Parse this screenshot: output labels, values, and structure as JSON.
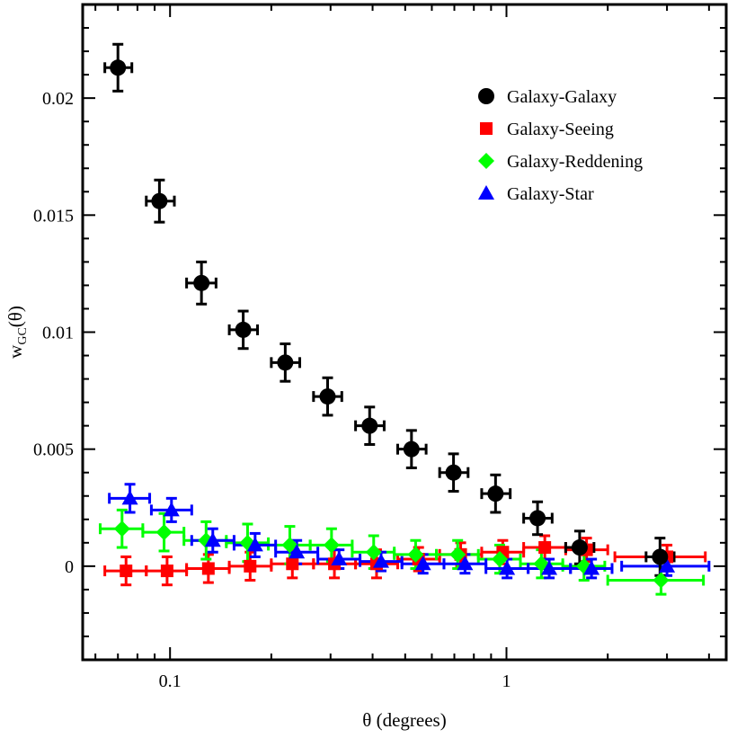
{
  "chart_data": {
    "type": "scatter",
    "xscale": "log",
    "xlim": [
      0.055,
      4.5
    ],
    "ylim": [
      -0.004,
      0.024
    ],
    "xlabel": "θ (degrees)",
    "ylabel": {
      "base": "w",
      "sub": "GC",
      "arg": "(θ)"
    },
    "x_tick_labels": [
      {
        "value": 0.1,
        "label": "0.1"
      },
      {
        "value": 1,
        "label": "1"
      }
    ],
    "y_tick_labels": [
      {
        "value": 0,
        "label": "0"
      },
      {
        "value": 0.005,
        "label": "0.005"
      },
      {
        "value": 0.01,
        "label": "0.01"
      },
      {
        "value": 0.015,
        "label": "0.015"
      },
      {
        "value": 0.02,
        "label": "0.02"
      }
    ],
    "legend_position": "top-right",
    "series": [
      {
        "name": "Galaxy-Galaxy",
        "color": "#000000",
        "marker": "circle",
        "points": [
          {
            "x": 0.07,
            "y": 0.0213,
            "yerr": 0.001,
            "xlo": 0.064,
            "xhi": 0.077
          },
          {
            "x": 0.093,
            "y": 0.0156,
            "yerr": 0.0009,
            "xlo": 0.085,
            "xhi": 0.103
          },
          {
            "x": 0.124,
            "y": 0.0121,
            "yerr": 0.0009,
            "xlo": 0.112,
            "xhi": 0.137
          },
          {
            "x": 0.165,
            "y": 0.0101,
            "yerr": 0.0008,
            "xlo": 0.15,
            "xhi": 0.182
          },
          {
            "x": 0.22,
            "y": 0.0087,
            "yerr": 0.0008,
            "xlo": 0.2,
            "xhi": 0.243
          },
          {
            "x": 0.294,
            "y": 0.00725,
            "yerr": 0.0008,
            "xlo": 0.267,
            "xhi": 0.324
          },
          {
            "x": 0.392,
            "y": 0.006,
            "yerr": 0.0008,
            "xlo": 0.356,
            "xhi": 0.433
          },
          {
            "x": 0.522,
            "y": 0.005,
            "yerr": 0.0008,
            "xlo": 0.475,
            "xhi": 0.577
          },
          {
            "x": 0.696,
            "y": 0.004,
            "yerr": 0.0008,
            "xlo": 0.633,
            "xhi": 0.769
          },
          {
            "x": 0.928,
            "y": 0.0031,
            "yerr": 0.0008,
            "xlo": 0.844,
            "xhi": 1.026
          },
          {
            "x": 1.237,
            "y": 0.00205,
            "yerr": 0.0007,
            "xlo": 1.125,
            "xhi": 1.367
          },
          {
            "x": 1.65,
            "y": 0.0008,
            "yerr": 0.0007,
            "xlo": 1.5,
            "xhi": 1.82
          },
          {
            "x": 2.86,
            "y": 0.0004,
            "yerr": 0.0008,
            "xlo": 2.6,
            "xhi": 3.15
          }
        ]
      },
      {
        "name": "Galaxy-Seeing",
        "color": "#ff0000",
        "marker": "square",
        "points": [
          {
            "x": 0.074,
            "y": -0.0002,
            "yerr": 0.0006,
            "xlo": 0.064,
            "xhi": 0.085
          },
          {
            "x": 0.098,
            "y": -0.0002,
            "yerr": 0.0006,
            "xlo": 0.085,
            "xhi": 0.112
          },
          {
            "x": 0.13,
            "y": -0.0001,
            "yerr": 0.0006,
            "xlo": 0.112,
            "xhi": 0.15
          },
          {
            "x": 0.173,
            "y": 0.0,
            "yerr": 0.0006,
            "xlo": 0.15,
            "xhi": 0.2
          },
          {
            "x": 0.231,
            "y": 0.0001,
            "yerr": 0.0006,
            "xlo": 0.2,
            "xhi": 0.267
          },
          {
            "x": 0.308,
            "y": 0.0001,
            "yerr": 0.0006,
            "xlo": 0.267,
            "xhi": 0.356
          },
          {
            "x": 0.411,
            "y": 0.0001,
            "yerr": 0.0006,
            "xlo": 0.356,
            "xhi": 0.475
          },
          {
            "x": 0.548,
            "y": 0.0003,
            "yerr": 0.0005,
            "xlo": 0.475,
            "xhi": 0.633
          },
          {
            "x": 0.731,
            "y": 0.0005,
            "yerr": 0.0005,
            "xlo": 0.633,
            "xhi": 0.844
          },
          {
            "x": 0.975,
            "y": 0.0006,
            "yerr": 0.0005,
            "xlo": 0.844,
            "xhi": 1.125
          },
          {
            "x": 1.3,
            "y": 0.0008,
            "yerr": 0.0005,
            "xlo": 1.125,
            "xhi": 1.5
          },
          {
            "x": 1.73,
            "y": 0.0007,
            "yerr": 0.0005,
            "xlo": 1.5,
            "xhi": 2.0
          },
          {
            "x": 3.0,
            "y": 0.0004,
            "yerr": 0.0005,
            "xlo": 2.1,
            "xhi": 3.9
          }
        ]
      },
      {
        "name": "Galaxy-Reddening",
        "color": "#00ff00",
        "marker": "diamond",
        "points": [
          {
            "x": 0.072,
            "y": 0.0016,
            "yerr": 0.0008,
            "xlo": 0.062,
            "xhi": 0.083
          },
          {
            "x": 0.096,
            "y": 0.00145,
            "yerr": 0.0008,
            "xlo": 0.083,
            "xhi": 0.11
          },
          {
            "x": 0.128,
            "y": 0.0011,
            "yerr": 0.0008,
            "xlo": 0.11,
            "xhi": 0.147
          },
          {
            "x": 0.17,
            "y": 0.001,
            "yerr": 0.0008,
            "xlo": 0.147,
            "xhi": 0.196
          },
          {
            "x": 0.227,
            "y": 0.0009,
            "yerr": 0.0008,
            "xlo": 0.196,
            "xhi": 0.261
          },
          {
            "x": 0.302,
            "y": 0.0009,
            "yerr": 0.0007,
            "xlo": 0.261,
            "xhi": 0.348
          },
          {
            "x": 0.403,
            "y": 0.0006,
            "yerr": 0.0007,
            "xlo": 0.348,
            "xhi": 0.464
          },
          {
            "x": 0.537,
            "y": 0.0005,
            "yerr": 0.0006,
            "xlo": 0.464,
            "xhi": 0.619
          },
          {
            "x": 0.716,
            "y": 0.0005,
            "yerr": 0.0006,
            "xlo": 0.619,
            "xhi": 0.825
          },
          {
            "x": 0.955,
            "y": 0.0003,
            "yerr": 0.0006,
            "xlo": 0.825,
            "xhi": 1.1
          },
          {
            "x": 1.27,
            "y": 0.0001,
            "yerr": 0.0006,
            "xlo": 1.1,
            "xhi": 1.47
          },
          {
            "x": 1.7,
            "y": 0.0,
            "yerr": 0.0006,
            "xlo": 1.47,
            "xhi": 1.96
          },
          {
            "x": 2.88,
            "y": -0.0006,
            "yerr": 0.0006,
            "xlo": 2.0,
            "xhi": 3.85
          }
        ]
      },
      {
        "name": "Galaxy-Star",
        "color": "#0000ff",
        "marker": "triangle",
        "points": [
          {
            "x": 0.076,
            "y": 0.0029,
            "yerr": 0.0006,
            "xlo": 0.066,
            "xhi": 0.087
          },
          {
            "x": 0.101,
            "y": 0.0024,
            "yerr": 0.0005,
            "xlo": 0.088,
            "xhi": 0.116
          },
          {
            "x": 0.134,
            "y": 0.0011,
            "yerr": 0.0005,
            "xlo": 0.116,
            "xhi": 0.155
          },
          {
            "x": 0.179,
            "y": 0.0009,
            "yerr": 0.0005,
            "xlo": 0.155,
            "xhi": 0.206
          },
          {
            "x": 0.238,
            "y": 0.0006,
            "yerr": 0.0005,
            "xlo": 0.206,
            "xhi": 0.275
          },
          {
            "x": 0.318,
            "y": 0.0003,
            "yerr": 0.0004,
            "xlo": 0.275,
            "xhi": 0.367
          },
          {
            "x": 0.424,
            "y": 0.0002,
            "yerr": 0.0004,
            "xlo": 0.367,
            "xhi": 0.489
          },
          {
            "x": 0.565,
            "y": 0.0001,
            "yerr": 0.0004,
            "xlo": 0.489,
            "xhi": 0.652
          },
          {
            "x": 0.753,
            "y": 0.0001,
            "yerr": 0.0004,
            "xlo": 0.652,
            "xhi": 0.869
          },
          {
            "x": 1.004,
            "y": -0.0001,
            "yerr": 0.0004,
            "xlo": 0.869,
            "xhi": 1.16
          },
          {
            "x": 1.34,
            "y": -0.0001,
            "yerr": 0.0004,
            "xlo": 1.16,
            "xhi": 1.55
          },
          {
            "x": 1.79,
            "y": -0.0001,
            "yerr": 0.0004,
            "xlo": 1.55,
            "xhi": 2.06
          },
          {
            "x": 3.0,
            "y": 0.0,
            "yerr": 0.0004,
            "xlo": 2.2,
            "xhi": 4.0
          }
        ]
      }
    ]
  }
}
